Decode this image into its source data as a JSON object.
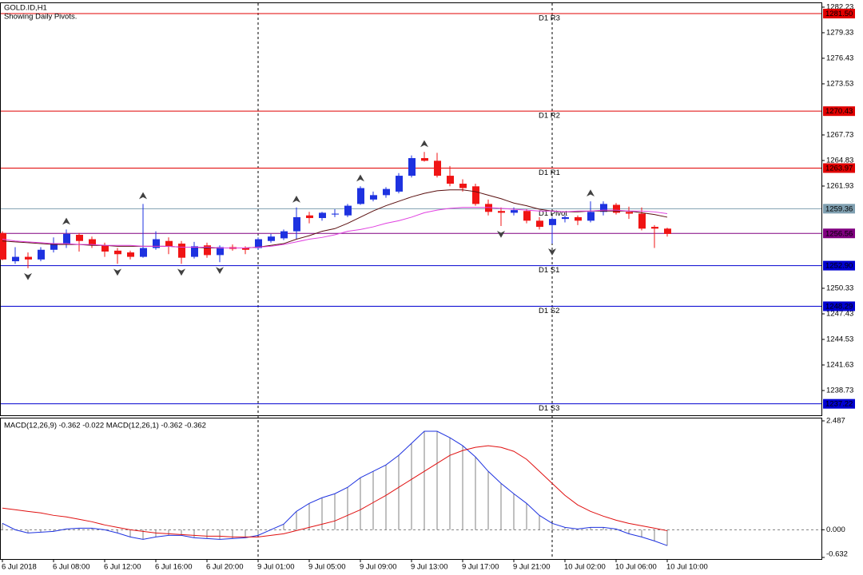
{
  "chart_data": [
    {
      "type": "candlestick",
      "title": "GOLD.ID,H1",
      "subtitle": "Showing Daily Pivots.",
      "categories": [
        "6 Jul 2018",
        null,
        null,
        null,
        "6 Jul 08:00",
        null,
        null,
        null,
        "6 Jul 12:00",
        null,
        null,
        null,
        "6 Jul 16:00",
        null,
        null,
        null,
        "6 Jul 20:00",
        null,
        null,
        null,
        "9 Jul 01:00",
        null,
        null,
        null,
        "9 Jul 05:00",
        null,
        null,
        null,
        "9 Jul 09:00",
        null,
        null,
        null,
        "9 Jul 13:00",
        null,
        null,
        null,
        "9 Jul 17:00",
        null,
        null,
        null,
        "9 Jul 21:00",
        null,
        null,
        null,
        "10 Jul 02:00",
        null,
        null,
        null,
        "10 Jul 06:00",
        null,
        null,
        null,
        "10 Jul 10:00"
      ],
      "open": [
        1256.6,
        1253.4,
        1253.9,
        1253.6,
        1254.7,
        1255.4,
        1256.4,
        1255.9,
        1255.2,
        1254.6,
        1254.4,
        1253.9,
        1254.9,
        1255.7,
        1255.4,
        1253.9,
        1255.2,
        1254.1,
        1255.0,
        1254.9,
        1254.9,
        1255.7,
        1256.0,
        1256.8,
        1258.6,
        1258.3,
        1258.7,
        1258.6,
        1259.9,
        1260.4,
        1260.9,
        1261.3,
        1263.1,
        1265.1,
        1264.8,
        1263.1,
        1262.2,
        1261.9,
        1259.9,
        1259.1,
        1258.9,
        1259.1,
        1258.0,
        1257.5,
        1258.2,
        1258.4,
        1258.0,
        1259.0,
        1259.8,
        1259.0,
        1258.8,
        1257.3,
        1257.1
      ],
      "high": [
        1256.8,
        1255.0,
        1254.4,
        1255.0,
        1256.1,
        1257.0,
        1256.6,
        1256.2,
        1255.5,
        1254.9,
        1254.6,
        1259.9,
        1256.8,
        1256.1,
        1255.7,
        1255.6,
        1255.5,
        1255.2,
        1255.3,
        1255.1,
        1256.1,
        1256.5,
        1257.0,
        1259.5,
        1259.0,
        1259.0,
        1259.3,
        1259.9,
        1261.9,
        1261.3,
        1261.8,
        1263.4,
        1265.4,
        1265.8,
        1265.7,
        1264.2,
        1262.7,
        1262.2,
        1260.4,
        1259.5,
        1259.5,
        1259.3,
        1258.4,
        1258.4,
        1258.6,
        1258.6,
        1260.2,
        1260.2,
        1260.0,
        1259.6,
        1259.5,
        1257.5,
        1257.2
      ],
      "low": [
        1253.5,
        1253.1,
        1252.6,
        1253.4,
        1254.4,
        1254.9,
        1254.5,
        1254.9,
        1253.9,
        1253.1,
        1253.6,
        1253.8,
        1254.7,
        1254.2,
        1253.1,
        1253.7,
        1253.8,
        1253.3,
        1254.6,
        1254.2,
        1254.7,
        1255.5,
        1255.8,
        1255.9,
        1257.7,
        1258.0,
        1258.4,
        1258.4,
        1259.8,
        1260.2,
        1260.6,
        1261.1,
        1262.9,
        1264.7,
        1262.9,
        1261.9,
        1261.3,
        1259.7,
        1258.6,
        1257.4,
        1258.6,
        1257.7,
        1257.0,
        1255.4,
        1257.8,
        1257.5,
        1257.8,
        1258.6,
        1258.7,
        1258.2,
        1256.9,
        1254.9,
        1256.2
      ],
      "close": [
        1253.6,
        1253.9,
        1253.6,
        1254.7,
        1255.4,
        1256.5,
        1255.7,
        1255.2,
        1254.5,
        1254.2,
        1253.9,
        1254.9,
        1255.9,
        1255.1,
        1253.8,
        1255.1,
        1254.1,
        1255.0,
        1254.8,
        1254.7,
        1255.9,
        1256.2,
        1256.8,
        1258.4,
        1258.3,
        1258.9,
        1258.8,
        1259.7,
        1261.7,
        1260.9,
        1261.6,
        1263.1,
        1265.1,
        1264.8,
        1263.1,
        1262.2,
        1261.7,
        1259.9,
        1259.0,
        1258.9,
        1259.2,
        1258.0,
        1257.3,
        1258.2,
        1258.4,
        1258.0,
        1259.0,
        1259.9,
        1258.9,
        1258.8,
        1257.1,
        1257.1,
        1256.5
      ],
      "up_color": "#1e32e0",
      "down_color": "#f01414",
      "series": [
        {
          "color": "#5a0f0f",
          "values": [
            1255.7,
            1255.6,
            1255.5,
            1255.4,
            1255.3,
            1255.3,
            1255.3,
            1255.2,
            1255.2,
            1255.1,
            1255.1,
            1255.1,
            1255.1,
            1255.1,
            1255.0,
            1255.0,
            1254.9,
            1254.9,
            1254.9,
            1254.9,
            1255.0,
            1255.2,
            1255.4,
            1255.9,
            1256.3,
            1256.8,
            1257.1,
            1257.7,
            1258.4,
            1259.1,
            1259.7,
            1260.2,
            1260.7,
            1261.1,
            1261.4,
            1261.5,
            1261.5,
            1261.3,
            1260.9,
            1260.5,
            1260.0,
            1259.7,
            1259.3,
            1259.1,
            1259.0,
            1259.0,
            1259.1,
            1259.1,
            1259.1,
            1259.1,
            1258.9,
            1258.7,
            1258.4
          ]
        },
        {
          "color": "#e040e0",
          "values": [
            1255.9,
            1255.7,
            1255.6,
            1255.5,
            1255.4,
            1255.4,
            1255.3,
            1255.3,
            1255.2,
            1255.2,
            1255.2,
            1255.1,
            1255.1,
            1255.1,
            1255.0,
            1255.0,
            1255.0,
            1254.9,
            1254.9,
            1254.9,
            1255.0,
            1255.1,
            1255.3,
            1255.6,
            1255.9,
            1256.1,
            1256.4,
            1256.8,
            1257.0,
            1257.3,
            1257.7,
            1258.0,
            1258.4,
            1258.9,
            1259.2,
            1259.4,
            1259.5,
            1259.5,
            1259.5,
            1259.4,
            1259.3,
            1259.2,
            1259.1,
            1259.1,
            1259.0,
            1259.1,
            1259.1,
            1259.2,
            1259.2,
            1259.1,
            1259.1,
            1259.0,
            1258.8
          ]
        }
      ],
      "fractals_up": [
        5,
        11,
        23,
        28,
        33,
        46
      ],
      "fractals_down": [
        2,
        9,
        14,
        17,
        39,
        43
      ],
      "levels": [
        {
          "name": "D1 R3",
          "value": 1281.5,
          "label": "1281.50",
          "color": "#e00000"
        },
        {
          "name": "D1 R2",
          "value": 1270.43,
          "label": "1270.43",
          "color": "#e00000"
        },
        {
          "name": "D1 R1",
          "value": 1263.97,
          "label": "1263.97",
          "color": "#e00000"
        },
        {
          "name": "D1 Pivot",
          "value": 1259.36,
          "label": "1259.36",
          "color": "#7f9fb0"
        },
        {
          "name": "D1 S1",
          "value": 1252.9,
          "label": "1252.90",
          "color": "#0000d0"
        },
        {
          "name": "D1 S2",
          "value": 1248.29,
          "label": "1248.29",
          "color": "#0000d0"
        },
        {
          "name": "D1 S3",
          "value": 1237.22,
          "label": "1237.22",
          "color": "#0000d0"
        }
      ],
      "bid": {
        "value": 1256.56,
        "label": "1256.56",
        "color": "#800080"
      },
      "ylim": [
        1235.92,
        1282.68
      ],
      "yticks": [
        1282.23,
        1279.33,
        1276.43,
        1273.53,
        1267.73,
        1264.83,
        1261.93,
        1250.33,
        1247.43,
        1244.53,
        1241.63,
        1238.73
      ]
    },
    {
      "type": "macd",
      "title": "MACD(12,26,9) -0.362 -0.022 MACD(12,26,1) -0.362 -0.362",
      "values": [
        0.146,
        0,
        -0.073,
        -0.055,
        -0.037,
        0.018,
        0.037,
        0.037,
        0,
        -0.073,
        -0.165,
        -0.219,
        -0.165,
        -0.128,
        -0.128,
        -0.183,
        -0.201,
        -0.219,
        -0.201,
        -0.183,
        -0.128,
        0,
        0.128,
        0.42,
        0.603,
        0.731,
        0.823,
        0.969,
        1.188,
        1.335,
        1.481,
        1.7,
        1.974,
        2.249,
        2.249,
        2.102,
        1.92,
        1.664,
        1.335,
        1.06,
        0.823,
        0.603,
        0.329,
        0.146,
        0.055,
        0.018,
        0.055,
        0.055,
        0.018,
        -0.091,
        -0.165,
        -0.256,
        -0.362
      ],
      "signal": [
        0.494,
        0.457,
        0.42,
        0.384,
        0.329,
        0.293,
        0.238,
        0.183,
        0.11,
        0.055,
        0,
        -0.037,
        -0.073,
        -0.091,
        -0.11,
        -0.128,
        -0.146,
        -0.146,
        -0.165,
        -0.165,
        -0.165,
        -0.128,
        -0.091,
        -0.018,
        0.055,
        0.128,
        0.201,
        0.329,
        0.457,
        0.622,
        0.786,
        0.969,
        1.152,
        1.335,
        1.517,
        1.7,
        1.81,
        1.883,
        1.92,
        1.883,
        1.792,
        1.609,
        1.335,
        1.06,
        0.786,
        0.567,
        0.42,
        0.311,
        0.219,
        0.146,
        0.091,
        0.037,
        -0.022
      ],
      "histogram_color": "#808080",
      "line_color": "#1e32e0",
      "signal_color": "#e01010",
      "ylim": [
        -0.632,
        2.487
      ],
      "yticks": [
        2.487,
        {
          "value": 0,
          "label": "0.000"
        },
        -0.632
      ]
    }
  ]
}
